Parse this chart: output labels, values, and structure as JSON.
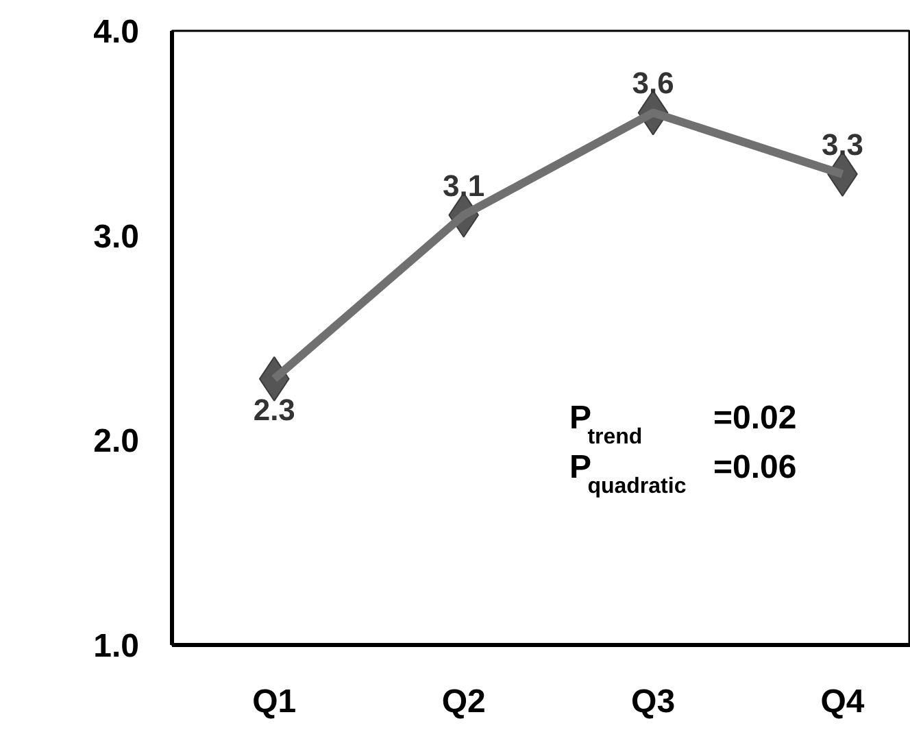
{
  "chart_data": {
    "type": "line",
    "categories": [
      "Q1",
      "Q2",
      "Q3",
      "Q4"
    ],
    "series": [
      {
        "color": "#707070",
        "values": [
          2.3,
          3.1,
          3.6,
          3.3
        ]
      }
    ],
    "ylim": [
      1.0,
      4.0
    ],
    "yticks": [
      {
        "value": 1,
        "label": "1.0"
      },
      {
        "value": 2,
        "label": "2.0"
      },
      {
        "value": 3,
        "label": "3.0"
      },
      {
        "value": 4,
        "label": "4.0"
      }
    ],
    "marker": "diamond",
    "data_labels": true,
    "grid": false,
    "annotations": [
      "P$_{trend}$=0.02",
      "P$_{quadratic}$=0.06"
    ]
  }
}
